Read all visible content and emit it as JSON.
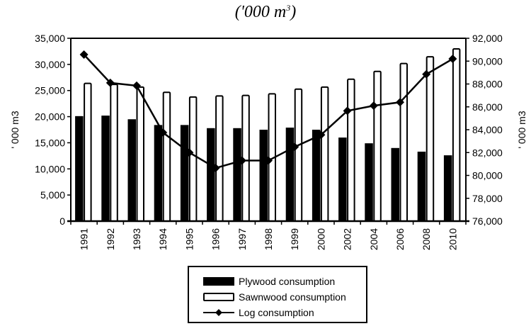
{
  "title": {
    "text": "('000 m",
    "superscript": "3",
    "close": ")"
  },
  "chart_data": {
    "type": "bar+line",
    "title": "('000 m3)",
    "categories": [
      "1991",
      "1992",
      "1993",
      "1994",
      "1995",
      "1996",
      "1997",
      "1998",
      "1999",
      "2000",
      "2002",
      "2004",
      "2006",
      "2008",
      "2010"
    ],
    "series": [
      {
        "name": "Plywood consumption",
        "type": "bar",
        "axis": "left",
        "color": "#000000",
        "values": [
          20100,
          20200,
          19500,
          18400,
          18400,
          17800,
          17800,
          17500,
          17900,
          17500,
          16000,
          14900,
          14000,
          13300,
          12600
        ]
      },
      {
        "name": "Sawnwood consumption",
        "type": "bar",
        "axis": "left",
        "color": "#ffffff",
        "values": [
          26500,
          26300,
          25800,
          24800,
          23900,
          24100,
          24200,
          24500,
          25400,
          25800,
          27300,
          28800,
          30300,
          31600,
          33100
        ]
      },
      {
        "name": "Log consumption",
        "type": "line",
        "axis": "right",
        "color": "#000000",
        "values": [
          90570,
          88100,
          87850,
          83750,
          82000,
          80650,
          81300,
          81300,
          82500,
          83550,
          85650,
          86100,
          86400,
          88850,
          90200
        ]
      }
    ],
    "y_left": {
      "label": "' 000 m3",
      "range": [
        0,
        35000
      ],
      "ticks": [
        "0",
        "5,000",
        "10,000",
        "15,000",
        "20,000",
        "25,000",
        "30,000",
        "35,000"
      ],
      "tick_values": [
        0,
        5000,
        10000,
        15000,
        20000,
        25000,
        30000,
        35000
      ]
    },
    "y_right": {
      "label": "' 000 m3",
      "range": [
        76000,
        92000
      ],
      "ticks": [
        "76,000",
        "78,000",
        "80,000",
        "82,000",
        "84,000",
        "86,000",
        "88,000",
        "90,000",
        "92,000"
      ],
      "tick_values": [
        76000,
        78000,
        80000,
        82000,
        84000,
        86000,
        88000,
        90000,
        92000
      ]
    },
    "grid": false,
    "legend_position": "bottom"
  },
  "legend": {
    "items": [
      {
        "label": "Plywood consumption"
      },
      {
        "label": "Sawnwood consumption"
      },
      {
        "label": "Log consumption"
      }
    ]
  }
}
